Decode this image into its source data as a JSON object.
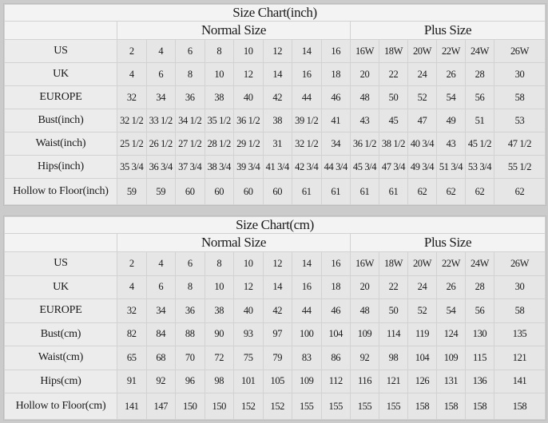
{
  "columns": {
    "normal": [
      "2",
      "4",
      "6",
      "8",
      "10",
      "12",
      "14",
      "16"
    ],
    "plus": [
      "16W",
      "18W",
      "20W",
      "22W",
      "24W",
      "26W"
    ]
  },
  "charts": [
    {
      "title": "Size Chart(inch)",
      "normal_label": "Normal Size",
      "plus_label": "Plus Size",
      "rows": [
        {
          "label": "US",
          "values": [
            "2",
            "4",
            "6",
            "8",
            "10",
            "12",
            "14",
            "16",
            "16W",
            "18W",
            "20W",
            "22W",
            "24W",
            "26W"
          ]
        },
        {
          "label": "UK",
          "values": [
            "4",
            "6",
            "8",
            "10",
            "12",
            "14",
            "16",
            "18",
            "20",
            "22",
            "24",
            "26",
            "28",
            "30"
          ]
        },
        {
          "label": "EUROPE",
          "values": [
            "32",
            "34",
            "36",
            "38",
            "40",
            "42",
            "44",
            "46",
            "48",
            "50",
            "52",
            "54",
            "56",
            "58"
          ]
        },
        {
          "label": "Bust(inch)",
          "values": [
            "32 1/2",
            "33 1/2",
            "34 1/2",
            "35 1/2",
            "36 1/2",
            "38",
            "39 1/2",
            "41",
            "43",
            "45",
            "47",
            "49",
            "51",
            "53"
          ]
        },
        {
          "label": "Waist(inch)",
          "values": [
            "25 1/2",
            "26 1/2",
            "27 1/2",
            "28 1/2",
            "29 1/2",
            "31",
            "32 1/2",
            "34",
            "36 1/2",
            "38 1/2",
            "40 3/4",
            "43",
            "45 1/2",
            "47 1/2"
          ]
        },
        {
          "label": "Hips(inch)",
          "values": [
            "35 3/4",
            "36 3/4",
            "37 3/4",
            "38 3/4",
            "39 3/4",
            "41 3/4",
            "42 3/4",
            "44 3/4",
            "45 3/4",
            "47 3/4",
            "49 3/4",
            "51 3/4",
            "53 3/4",
            "55 1/2"
          ]
        },
        {
          "label": "Hollow to Floor(inch)",
          "values": [
            "59",
            "59",
            "60",
            "60",
            "60",
            "60",
            "61",
            "61",
            "61",
            "61",
            "62",
            "62",
            "62",
            "62"
          ]
        }
      ]
    },
    {
      "title": "Size Chart(cm)",
      "normal_label": "Normal Size",
      "plus_label": "Plus Size",
      "rows": [
        {
          "label": "US",
          "values": [
            "2",
            "4",
            "6",
            "8",
            "10",
            "12",
            "14",
            "16",
            "16W",
            "18W",
            "20W",
            "22W",
            "24W",
            "26W"
          ]
        },
        {
          "label": "UK",
          "values": [
            "4",
            "6",
            "8",
            "10",
            "12",
            "14",
            "16",
            "18",
            "20",
            "22",
            "24",
            "26",
            "28",
            "30"
          ]
        },
        {
          "label": "EUROPE",
          "values": [
            "32",
            "34",
            "36",
            "38",
            "40",
            "42",
            "44",
            "46",
            "48",
            "50",
            "52",
            "54",
            "56",
            "58"
          ]
        },
        {
          "label": "Bust(cm)",
          "values": [
            "82",
            "84",
            "88",
            "90",
            "93",
            "97",
            "100",
            "104",
            "109",
            "114",
            "119",
            "124",
            "130",
            "135"
          ]
        },
        {
          "label": "Waist(cm)",
          "values": [
            "65",
            "68",
            "70",
            "72",
            "75",
            "79",
            "83",
            "86",
            "92",
            "98",
            "104",
            "109",
            "115",
            "121"
          ]
        },
        {
          "label": "Hips(cm)",
          "values": [
            "91",
            "92",
            "96",
            "98",
            "101",
            "105",
            "109",
            "112",
            "116",
            "121",
            "126",
            "131",
            "136",
            "141"
          ]
        },
        {
          "label": "Hollow to Floor(cm)",
          "values": [
            "141",
            "147",
            "150",
            "150",
            "152",
            "152",
            "155",
            "155",
            "155",
            "155",
            "158",
            "158",
            "158",
            "158"
          ]
        }
      ]
    }
  ]
}
